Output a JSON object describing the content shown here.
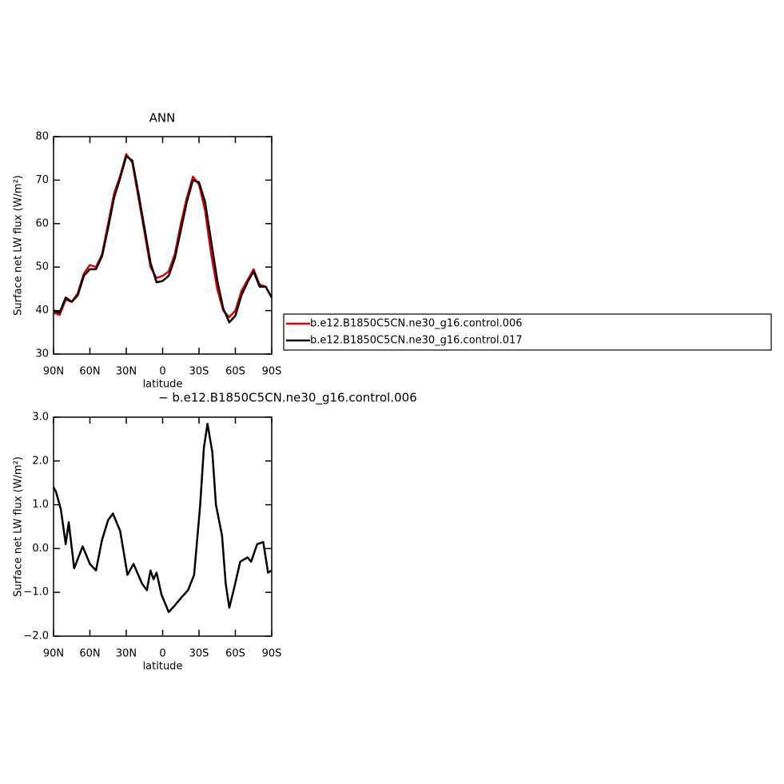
{
  "chart_data": [
    {
      "type": "line",
      "title": "ANN",
      "xlabel": "latitude",
      "ylabel": "Surface net LW flux (W/m²)",
      "x": [
        90,
        85,
        80,
        75,
        70,
        65,
        60,
        55,
        50,
        45,
        40,
        35,
        30,
        25,
        20,
        15,
        10,
        5,
        0,
        -5,
        -10,
        -15,
        -20,
        -25,
        -30,
        -35,
        -40,
        -45,
        -50,
        -55,
        -60,
        -65,
        -70,
        -75,
        -80,
        -85,
        -90
      ],
      "xlim": [
        90,
        -90
      ],
      "xticks": [
        {
          "value": 90,
          "label": "90N"
        },
        {
          "value": 60,
          "label": "60N"
        },
        {
          "value": 30,
          "label": "30N"
        },
        0,
        {
          "value": -30,
          "label": "30S"
        },
        {
          "value": -60,
          "label": "60S"
        },
        {
          "value": -90,
          "label": "90S"
        }
      ],
      "ylim": [
        30,
        80
      ],
      "yticks": [
        30,
        40,
        50,
        60,
        70,
        80
      ],
      "series": [
        {
          "name": "b.e12.B1850C5CN.ne30_g16.control.006",
          "color": "#e00000",
          "values": [
            39.5,
            39,
            42.5,
            42,
            44,
            48.5,
            50.5,
            50,
            53,
            60,
            67,
            71,
            76,
            74,
            66,
            58,
            50,
            47.5,
            48,
            49,
            53,
            60,
            66,
            70.8,
            69,
            63,
            53,
            45,
            40,
            38.5,
            40,
            44.5,
            47,
            49.5,
            46,
            45.5,
            43
          ]
        },
        {
          "name": "b.e12.B1850C5CN.ne30_g16.control.017",
          "color": "#000000",
          "values": [
            40,
            39.5,
            43,
            42,
            43.5,
            48,
            49.5,
            49.5,
            52.5,
            59,
            66,
            70.5,
            75.5,
            74.5,
            67,
            59,
            51,
            46.5,
            46.8,
            48,
            52,
            58.5,
            65,
            70,
            69.5,
            65,
            56,
            47,
            40.5,
            37.3,
            38.8,
            43.5,
            46.5,
            49,
            45.5,
            45.5,
            43
          ]
        }
      ]
    },
    {
      "type": "line",
      "title": "− b.e12.B1850C5CN.ne30_g16.control.006",
      "xlabel": "latitude",
      "ylabel": "Surface net LW flux (W/m²)",
      "x": [
        90,
        88,
        84,
        80,
        77.5,
        73,
        66,
        60,
        55,
        50,
        45,
        41,
        35,
        29,
        24,
        17,
        13,
        10,
        7.5,
        5,
        1,
        -5,
        -10,
        -16,
        -21,
        -26,
        -31,
        -34,
        -37,
        -41,
        -44,
        -49,
        -52,
        -55,
        -59,
        -64,
        -70,
        -73,
        -78,
        -83,
        -87,
        -90
      ],
      "xlim": [
        90,
        -90
      ],
      "xticks": [
        {
          "value": 90,
          "label": "90N"
        },
        {
          "value": 60,
          "label": "60N"
        },
        {
          "value": 30,
          "label": "30N"
        },
        0,
        {
          "value": -30,
          "label": "30S"
        },
        {
          "value": -60,
          "label": "60S"
        },
        {
          "value": -90,
          "label": "90S"
        }
      ],
      "ylim": [
        -2,
        3
      ],
      "yticks": [
        {
          "value": -2,
          "label": "−2.0"
        },
        {
          "value": -1,
          "label": "−1.0"
        },
        {
          "value": 0,
          "label": "0.0"
        },
        {
          "value": 1,
          "label": "1.0"
        },
        {
          "value": 2,
          "label": "2.0"
        },
        {
          "value": 3,
          "label": "3.0"
        }
      ],
      "series": [
        {
          "name": null,
          "color": "#000000",
          "values": [
            1.4,
            1.3,
            0.9,
            0.1,
            0.6,
            -0.45,
            0.05,
            -0.35,
            -0.5,
            0.2,
            0.65,
            0.8,
            0.4,
            -0.6,
            -0.35,
            -0.8,
            -0.95,
            -0.5,
            -0.7,
            -0.55,
            -1.05,
            -1.45,
            -1.3,
            -1.1,
            -0.95,
            -0.6,
            1.0,
            2.3,
            2.85,
            2.2,
            1.0,
            0.3,
            -0.8,
            -1.35,
            -0.9,
            -0.3,
            -0.2,
            -0.3,
            0.1,
            0.15,
            -0.55,
            -0.5
          ]
        }
      ]
    }
  ]
}
